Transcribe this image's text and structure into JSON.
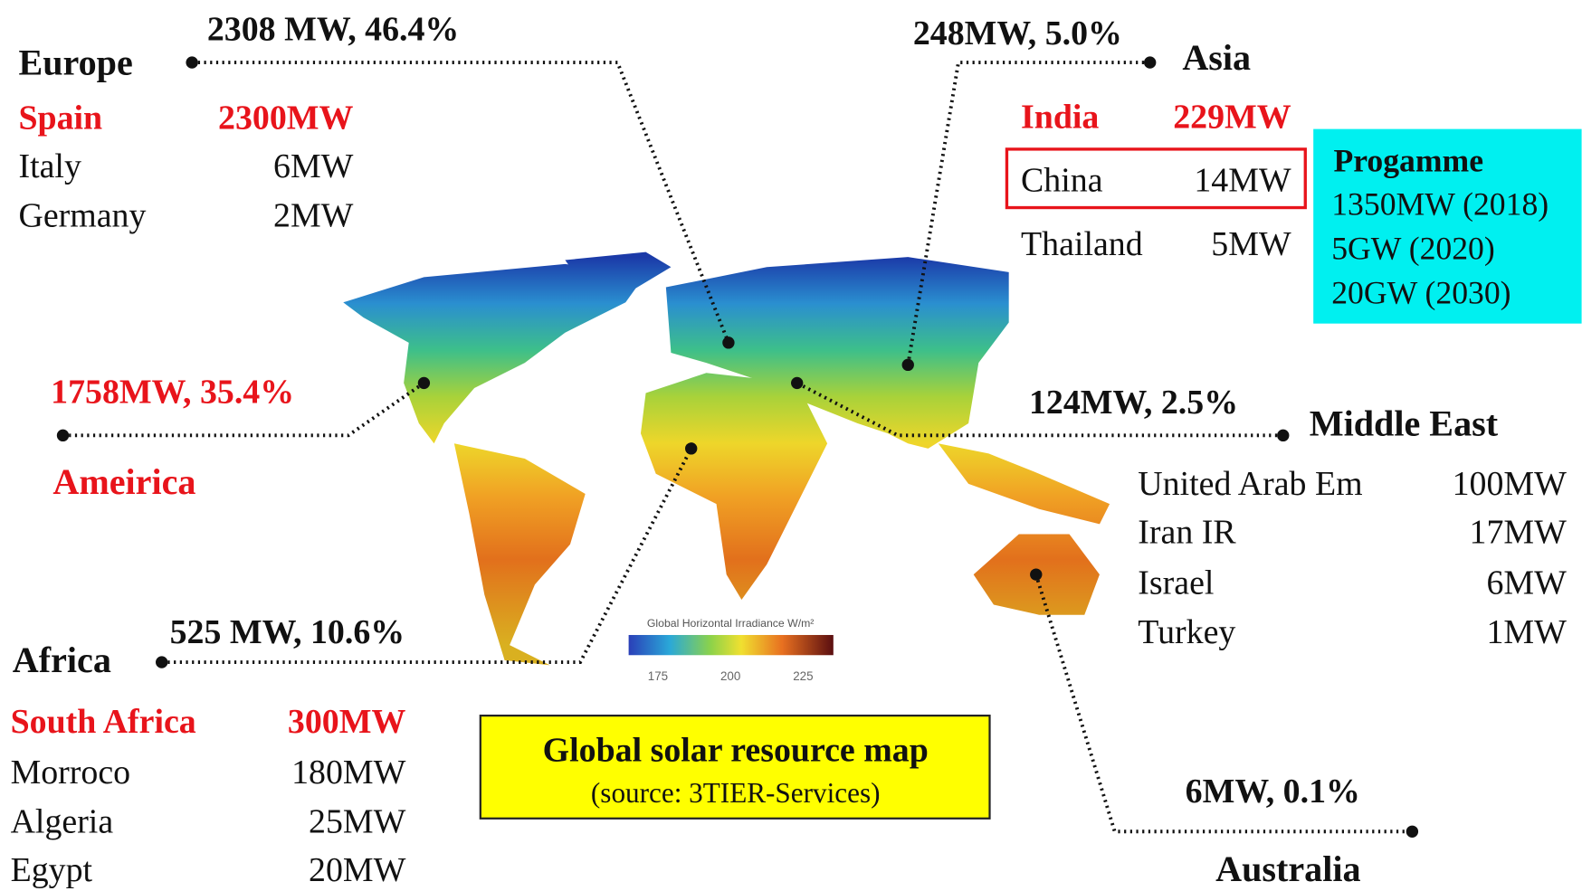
{
  "title": "Global solar resource map",
  "source": "(source: 3TIER-Services)",
  "legend": {
    "title": "Global Horizontal Irradiance W/m²",
    "ticks": [
      "175",
      "200",
      "225"
    ]
  },
  "regions": [
    {
      "name": "Europe",
      "summary": "2308 MW, 46.4%",
      "countries": [
        {
          "name": "Spain",
          "value": "2300MW"
        },
        {
          "name": "Italy",
          "value": "6MW"
        },
        {
          "name": "Germany",
          "value": "2MW"
        }
      ]
    },
    {
      "name": "Asia",
      "summary": "248MW, 5.0%",
      "countries": [
        {
          "name": "India",
          "value": "229MW"
        },
        {
          "name": "China",
          "value": "14MW"
        },
        {
          "name": "Thailand",
          "value": "5MW"
        }
      ],
      "programme": {
        "title": "Progamme",
        "items": [
          "1350MW (2018)",
          "5GW (2020)",
          "20GW (2030)"
        ]
      }
    },
    {
      "name": "Ameirica",
      "summary": "1758MW, 35.4%"
    },
    {
      "name": "Middle East",
      "summary": "124MW, 2.5%",
      "countries": [
        {
          "name": "United Arab Em",
          "value": "100MW"
        },
        {
          "name": "Iran IR",
          "value": "17MW"
        },
        {
          "name": "Israel",
          "value": "6MW"
        },
        {
          "name": "Turkey",
          "value": "1MW"
        }
      ]
    },
    {
      "name": "Africa",
      "summary": "525 MW, 10.6%",
      "countries": [
        {
          "name": "South Africa",
          "value": "300MW"
        },
        {
          "name": "Morroco",
          "value": "180MW"
        },
        {
          "name": "Algeria",
          "value": "25MW"
        },
        {
          "name": "Egypt",
          "value": "20MW"
        }
      ]
    },
    {
      "name": "Australia",
      "summary": "6MW, 0.1%"
    }
  ]
}
